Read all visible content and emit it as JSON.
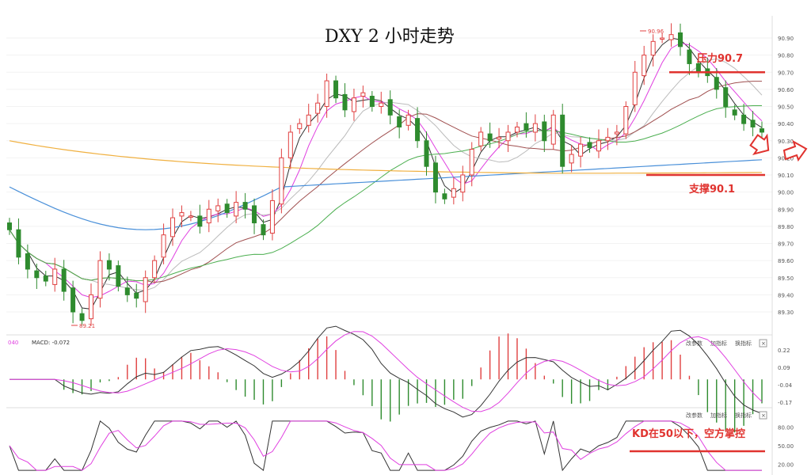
{
  "title": "DXY 2 小时走势",
  "colors": {
    "up": "#e04040",
    "down": "#2e8b2e",
    "ma5": "#333333",
    "ma10": "#e040e0",
    "ma20": "#bbbbbb",
    "ma30": "#a05050",
    "ma60": "#4caf50",
    "ma120": "#4a90d9",
    "ma250": "#f0b040",
    "annotation": "#e0332f",
    "macd_dif": "#333333",
    "macd_dea": "#e040e0"
  },
  "main_panel": {
    "y_ticks": [
      "90.90",
      "90.80",
      "90.70",
      "90.60",
      "90.50",
      "90.40",
      "90.30",
      "90.20",
      "90.10",
      "90.00",
      "89.90",
      "89.80",
      "89.70",
      "89.60",
      "89.50",
      "89.40",
      "89.30"
    ],
    "y_range": [
      89.2,
      91.0
    ],
    "high_label": "90.96",
    "low_label": "89.21",
    "resistance": {
      "label": "压力90.7",
      "value": 90.7
    },
    "support": {
      "label": "支撑90.1",
      "value": 90.1
    }
  },
  "macd_panel": {
    "header_left": "040",
    "header_macd": "MACD: -0.072",
    "buttons": [
      "改参数",
      "加指标",
      "换指标"
    ],
    "close_symbol": "×",
    "y_ticks": [
      "0.22",
      "0.09",
      "-0.04",
      "-0.17"
    ]
  },
  "kd_panel": {
    "buttons": [
      "改参数",
      "加指标",
      "换指标"
    ],
    "close_symbol": "×",
    "y_ticks": [
      "80.00",
      "50.00",
      "20.00"
    ],
    "annotation": "KD在50以下，空方掌控"
  },
  "chart_data": {
    "type": "candlestick",
    "title": "DXY 2 小时走势",
    "ylim": [
      89.2,
      91.0
    ],
    "series": [
      {
        "name": "price_path",
        "values": [
          89.78,
          89.62,
          89.55,
          89.5,
          89.48,
          89.55,
          89.42,
          89.3,
          89.25,
          89.4,
          89.6,
          89.55,
          89.45,
          89.4,
          89.38,
          89.5,
          89.6,
          89.75,
          89.85,
          89.88,
          89.86,
          89.8,
          89.9,
          89.92,
          89.88,
          89.94,
          89.9,
          89.82,
          89.75,
          89.95,
          90.2,
          90.35,
          90.4,
          90.45,
          90.52,
          90.65,
          90.55,
          90.48,
          90.55,
          90.58,
          90.5,
          90.52,
          90.45,
          90.38,
          90.45,
          90.3,
          90.15,
          90.0,
          89.96,
          90.02,
          90.1,
          90.25,
          90.35,
          90.3,
          90.32,
          90.35,
          90.38,
          90.36,
          90.4,
          90.3,
          90.45,
          90.15,
          90.22,
          90.28,
          90.26,
          90.3,
          90.32,
          90.35,
          90.5,
          90.7,
          90.8,
          90.88,
          90.9,
          90.92,
          90.85,
          90.75,
          90.7,
          90.68,
          90.6,
          90.5,
          90.45,
          90.4,
          90.38,
          90.35
        ]
      }
    ],
    "annotations": [
      "压力90.7",
      "支撑90.1",
      "90.96",
      "89.21"
    ]
  }
}
